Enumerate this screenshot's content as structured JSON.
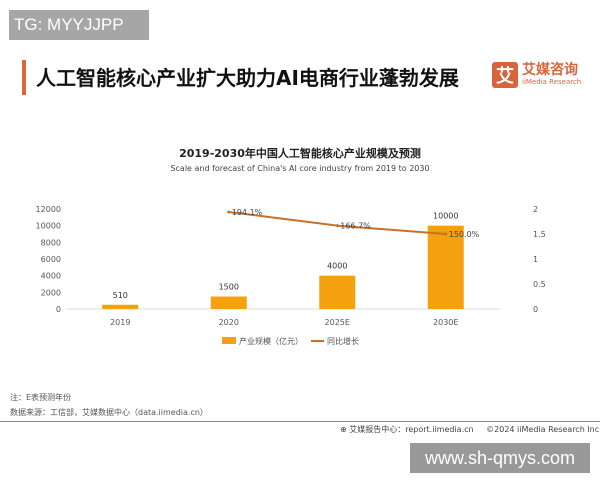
{
  "watermark_top": "TG: MYYJJPP",
  "header": {
    "title": "人工智能核心产业扩大助力AI电商行业蓬勃发展",
    "logo_mark": "艾",
    "logo_cn": "艾媒咨询",
    "logo_en": "iiMedia Research"
  },
  "colors": {
    "bar": "#f5a00f",
    "line": "#c8702a",
    "accent": "#e0683a"
  },
  "chart_data": {
    "type": "bar+line",
    "title": "2019-2030年中国人工智能核心产业规模及预测",
    "subtitle": "Scale and forecast of China's AI core industry from 2019 to 2030",
    "categories": [
      "2019",
      "2020",
      "2025E",
      "2030E"
    ],
    "series": [
      {
        "name": "产业规模（亿元）",
        "type": "bar",
        "axis": "left",
        "values": [
          510,
          1500,
          4000,
          10000
        ],
        "labels": [
          "510",
          "1500",
          "4000",
          "10000"
        ]
      },
      {
        "name": "同比增长",
        "type": "line",
        "axis": "right",
        "values": [
          null,
          1.941,
          1.667,
          1.5
        ],
        "labels": [
          "",
          "194.1%",
          "166.7%",
          "150.0%"
        ]
      }
    ],
    "y_left": {
      "range": [
        0,
        12000
      ],
      "ticks": [
        "0",
        "2000",
        "4000",
        "6000",
        "8000",
        "10000",
        "12000"
      ]
    },
    "y_right": {
      "range": [
        0,
        2
      ],
      "ticks": [
        "0",
        "0.5",
        "1",
        "1.5",
        "2"
      ]
    },
    "grid": false,
    "legend": "bottom"
  },
  "notes": {
    "note": "注：E表预测年份",
    "source": "数据来源：工信部，艾媒数据中心（data.iimedia.cn）"
  },
  "footer": {
    "report": "艾媒报告中心：report.iimedia.cn",
    "copyright": "©2024  iiMedia Research  Inc"
  },
  "watermark_bottom": "www.sh-qmys.com"
}
